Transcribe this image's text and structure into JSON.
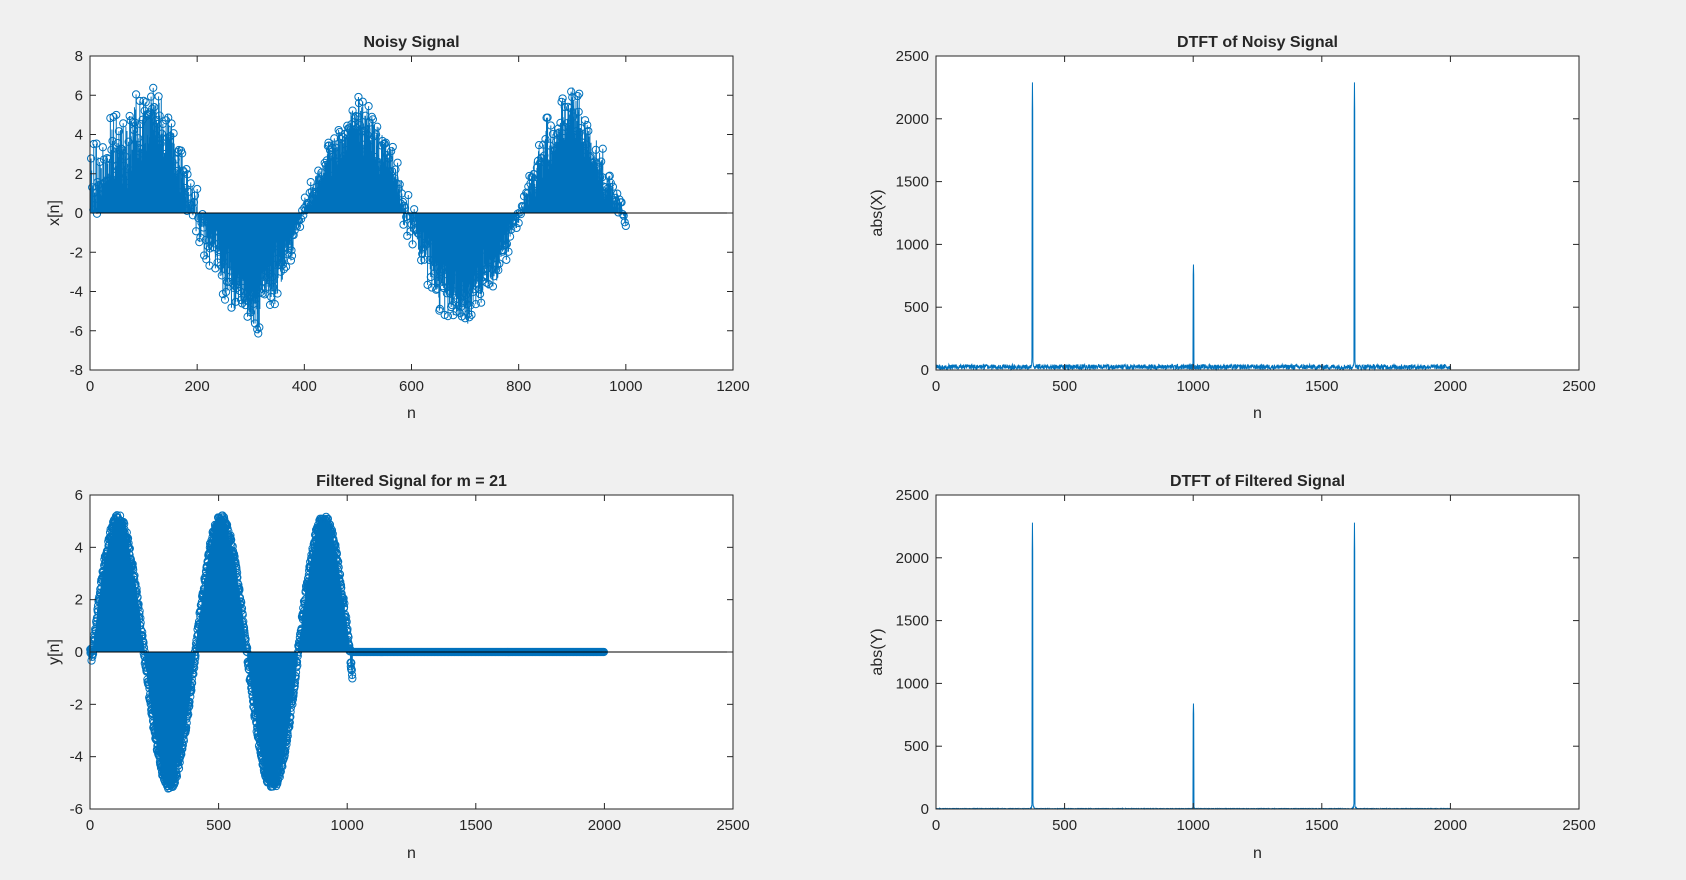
{
  "figure": {
    "background": "#f0f0f0",
    "axes_color": "#262626",
    "series_color": "#0072bd"
  },
  "chart_data": [
    {
      "id": "noisy-signal",
      "type": "stem",
      "title": "Noisy Signal",
      "xlabel": "n",
      "ylabel": "x[n]",
      "xlim": [
        0,
        1200
      ],
      "ylim": [
        -8,
        8
      ],
      "xticks": [
        0,
        200,
        400,
        600,
        800,
        1000,
        1200
      ],
      "yticks": [
        -8,
        -6,
        -4,
        -2,
        0,
        2,
        4,
        6,
        8
      ],
      "grid": false,
      "series": [
        {
          "x_range": [
            1,
            1000
          ],
          "model": "amplitude 5 sinusoid with period 400 plus noise",
          "envelope": {
            "x": [
              0,
              50,
              100,
              125,
              150,
              200,
              250,
              300,
              350,
              400,
              450,
              500,
              550,
              600,
              650,
              700,
              750,
              800,
              850,
              900,
              950,
              1000
            ],
            "upper": [
              4.3,
              6.0,
              6.6,
              7.3,
              5.9,
              1.8,
              -1.0,
              -3.0,
              -1.2,
              0.8,
              4.3,
              6.6,
              5.4,
              0.8,
              -1.2,
              -3.0,
              -1.1,
              0.6,
              5.4,
              7.5,
              4.5,
              0.2
            ],
            "lower": [
              -1.6,
              0.5,
              2.0,
              2.8,
              1.7,
              -1.8,
              -4.9,
              -7.0,
              -5.0,
              -0.5,
              1.6,
              3.0,
              1.3,
              -2.2,
              -5.6,
              -6.6,
              -4.9,
              -0.8,
              1.2,
              3.0,
              0.5,
              -0.9
            ]
          }
        }
      ]
    },
    {
      "id": "dtft-noisy",
      "type": "line",
      "title": "DTFT of Noisy Signal",
      "xlabel": "n",
      "ylabel": "abs(X)",
      "xlim": [
        0,
        2500
      ],
      "ylim": [
        0,
        2500
      ],
      "xticks": [
        0,
        500,
        1000,
        1500,
        2000,
        2500
      ],
      "yticks": [
        0,
        500,
        1000,
        1500,
        2000,
        2500
      ],
      "grid": false,
      "series": [
        {
          "x_range": [
            1,
            2001
          ],
          "noise_floor": 25,
          "peaks": [
            {
              "x": 375,
              "y": 2290
            },
            {
              "x": 1001,
              "y": 840
            },
            {
              "x": 1627,
              "y": 2290
            }
          ]
        }
      ]
    },
    {
      "id": "filtered-signal",
      "type": "stem",
      "title": "Filtered Signal for m = 21",
      "xlabel": "n",
      "ylabel": "y[n]",
      "xlim": [
        0,
        2500
      ],
      "ylim": [
        -6,
        6
      ],
      "xticks": [
        0,
        500,
        1000,
        1500,
        2000,
        2500
      ],
      "yticks": [
        -6,
        -4,
        -2,
        0,
        2,
        4,
        6
      ],
      "grid": false,
      "series": [
        {
          "x_range": [
            1,
            2000
          ],
          "active_until": 1020,
          "model": "smoothed sinusoid, amplitude about 5, period 400, zero after n = 1020",
          "peaks": [
            {
              "x": 100,
              "y": 5.1
            },
            {
              "x": 305,
              "y": -5.4
            },
            {
              "x": 515,
              "y": 5.1
            },
            {
              "x": 710,
              "y": -5.0
            },
            {
              "x": 915,
              "y": 5.2
            }
          ]
        }
      ]
    },
    {
      "id": "dtft-filtered",
      "type": "line",
      "title": "DTFT of Filtered Signal",
      "xlabel": "n",
      "ylabel": "abs(Y)",
      "xlim": [
        0,
        2500
      ],
      "ylim": [
        0,
        2500
      ],
      "xticks": [
        0,
        500,
        1000,
        1500,
        2000,
        2500
      ],
      "yticks": [
        0,
        500,
        1000,
        1500,
        2000,
        2500
      ],
      "grid": false,
      "series": [
        {
          "x_range": [
            1,
            2001
          ],
          "noise_floor": 4,
          "peaks": [
            {
              "x": 375,
              "y": 2280
            },
            {
              "x": 1001,
              "y": 840
            },
            {
              "x": 1627,
              "y": 2280
            }
          ]
        }
      ]
    }
  ]
}
